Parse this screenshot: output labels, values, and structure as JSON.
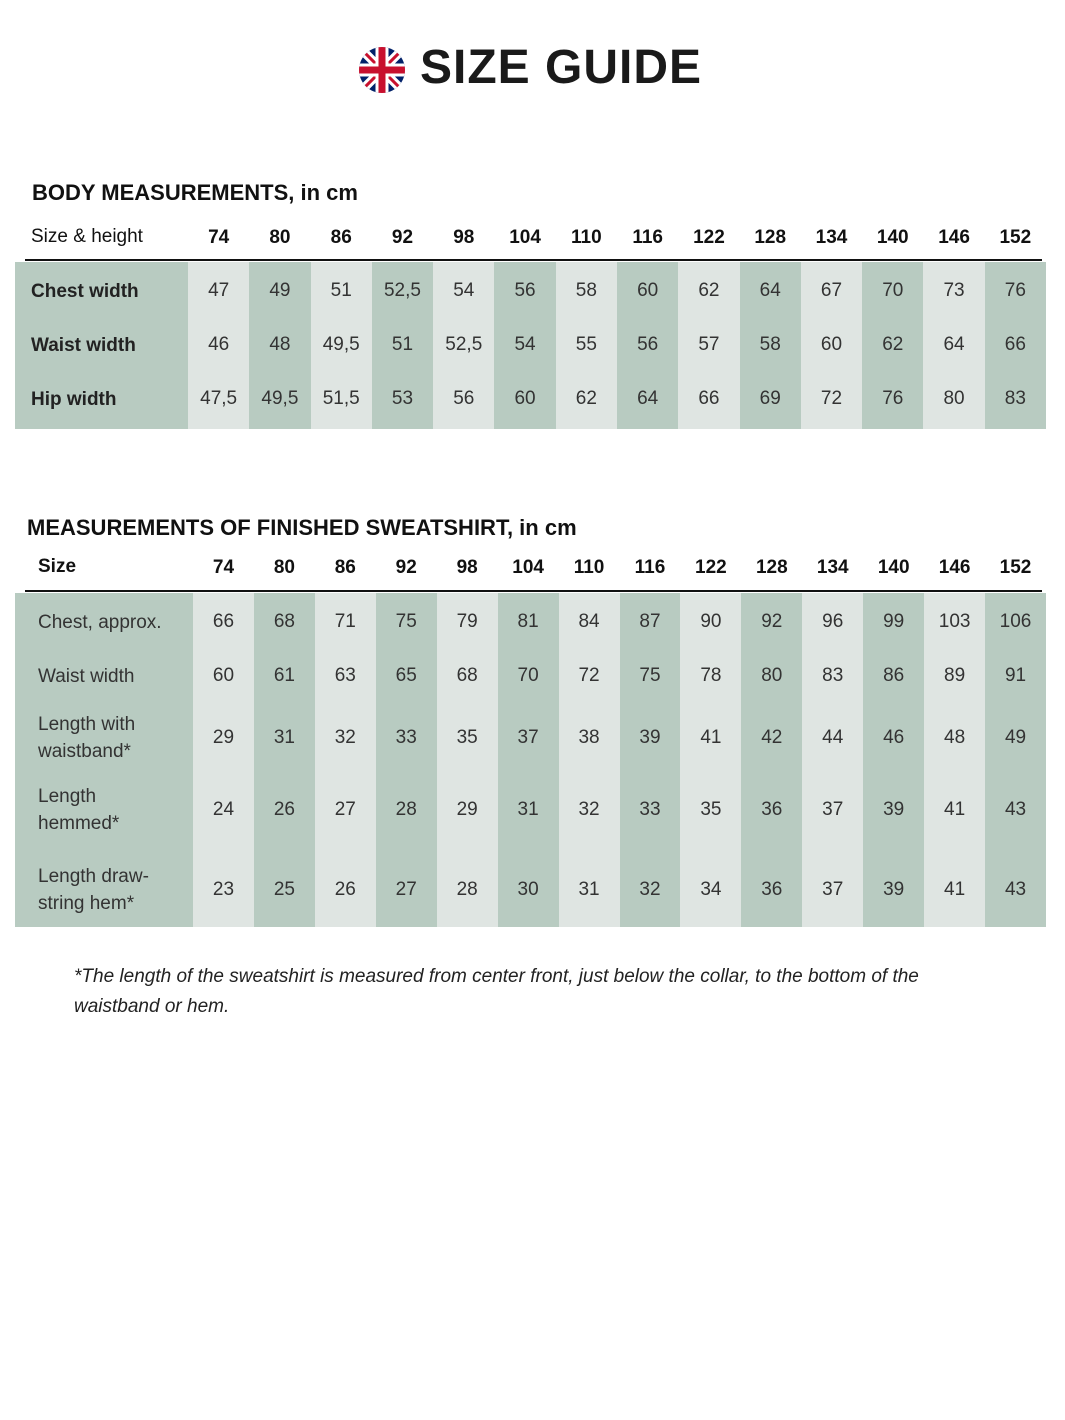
{
  "header": {
    "title": "SIZE GUIDE"
  },
  "body_table": {
    "title": "BODY MEASUREMENTS, in cm",
    "corner": "Size & height",
    "sizes": [
      "74",
      "80",
      "86",
      "92",
      "98",
      "104",
      "110",
      "116",
      "122",
      "128",
      "134",
      "140",
      "146",
      "152"
    ],
    "rows": [
      {
        "label": [
          "Chest width"
        ],
        "values": [
          "47",
          "49",
          "51",
          "52,5",
          "54",
          "56",
          "58",
          "60",
          "62",
          "64",
          "67",
          "70",
          "73",
          "76"
        ]
      },
      {
        "label": [
          "Waist width"
        ],
        "values": [
          "46",
          "48",
          "49,5",
          "51",
          "52,5",
          "54",
          "55",
          "56",
          "57",
          "58",
          "60",
          "62",
          "64",
          "66"
        ]
      },
      {
        "label": [
          "Hip width"
        ],
        "values": [
          "47,5",
          "49,5",
          "51,5",
          "53",
          "56",
          "60",
          "62",
          "64",
          "66",
          "69",
          "72",
          "76",
          "80",
          "83"
        ]
      }
    ]
  },
  "finished_table": {
    "title": "MEASUREMENTS OF FINISHED SWEATSHIRT, in cm",
    "corner": "Size",
    "sizes": [
      "74",
      "80",
      "86",
      "92",
      "98",
      "104",
      "110",
      "116",
      "122",
      "128",
      "134",
      "140",
      "146",
      "152"
    ],
    "rows": [
      {
        "label": [
          "Chest, approx."
        ],
        "values": [
          "66",
          "68",
          "71",
          "75",
          "79",
          "81",
          "84",
          "87",
          "90",
          "92",
          "96",
          "99",
          "103",
          "106"
        ]
      },
      {
        "label": [
          "Waist width"
        ],
        "values": [
          "60",
          "61",
          "63",
          "65",
          "68",
          "70",
          "72",
          "75",
          "78",
          "80",
          "83",
          "86",
          "89",
          "91"
        ]
      },
      {
        "label": [
          "Length with",
          "waistband*"
        ],
        "values": [
          "29",
          "31",
          "32",
          "33",
          "35",
          "37",
          "38",
          "39",
          "41",
          "42",
          "44",
          "46",
          "48",
          "49"
        ]
      },
      {
        "label": [
          "Length",
          "hemmed*"
        ],
        "values": [
          "24",
          "26",
          "27",
          "28",
          "29",
          "31",
          "32",
          "33",
          "35",
          "36",
          "37",
          "39",
          "41",
          "43"
        ]
      },
      {
        "label": [
          "Length draw-",
          "string hem*"
        ],
        "values": [
          "23",
          "25",
          "26",
          "27",
          "28",
          "30",
          "31",
          "32",
          "34",
          "36",
          "37",
          "39",
          "41",
          "43"
        ]
      }
    ]
  },
  "footnote": "*The length of the sweatshirt is measured from center front, just below the collar, to the bottom of the waistband or hem."
}
